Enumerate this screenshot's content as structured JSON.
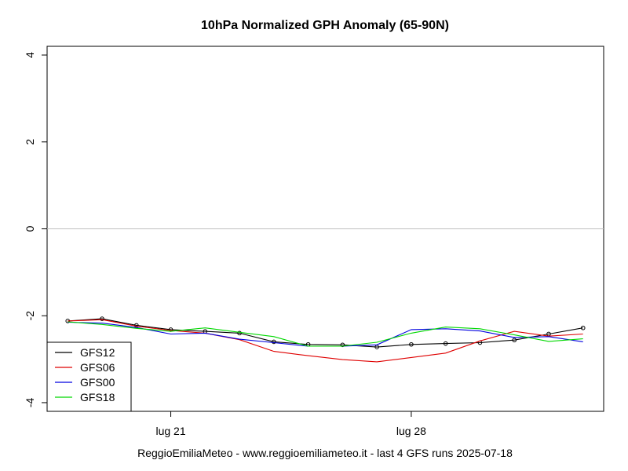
{
  "chart_data": {
    "type": "line",
    "title": "10hPa Normalized GPH Anomaly (65-90N)",
    "caption": "ReggioEmiliaMeteo - www.reggioemiliameteo.it - last 4 GFS runs 2025-07-18",
    "xlabel": "",
    "ylabel": "",
    "x": [
      1,
      2,
      3,
      4,
      5,
      6,
      7,
      8,
      9,
      10,
      11,
      12,
      13,
      14,
      15,
      16
    ],
    "x_ticks": [
      {
        "x": 4,
        "label": "lug 21"
      },
      {
        "x": 11,
        "label": "lug 28"
      }
    ],
    "xlim": [
      0.4,
      16.6
    ],
    "ylim": [
      -4.2,
      4.2
    ],
    "y_ticks": [
      "4",
      "2",
      "0",
      "-2",
      "-4"
    ],
    "y_tick_values": [
      4,
      2,
      0,
      -2,
      -4
    ],
    "reference_line": {
      "y": 0,
      "color": "#bfbfbf"
    },
    "legend_position": "bottom-left",
    "series": [
      {
        "name": "GFS12",
        "color": "#000000",
        "markers": true,
        "values": [
          -2.12,
          -2.07,
          -2.22,
          -2.32,
          -2.36,
          -2.4,
          -2.6,
          -2.66,
          -2.67,
          -2.72,
          -2.66,
          -2.64,
          -2.62,
          -2.56,
          -2.42,
          -2.28
        ]
      },
      {
        "name": "GFS06",
        "color": "#df0000",
        "markers": false,
        "values": [
          -2.12,
          -2.09,
          -2.24,
          -2.34,
          -2.4,
          -2.55,
          -2.82,
          -2.92,
          -3.01,
          -3.06,
          -2.96,
          -2.86,
          -2.58,
          -2.36,
          -2.47,
          -2.42
        ]
      },
      {
        "name": "GFS00",
        "color": "#0000e0",
        "markers": false,
        "values": [
          -2.15,
          -2.17,
          -2.27,
          -2.42,
          -2.4,
          -2.54,
          -2.62,
          -2.7,
          -2.7,
          -2.67,
          -2.32,
          -2.3,
          -2.35,
          -2.5,
          -2.48,
          -2.6
        ]
      },
      {
        "name": "GFS18",
        "color": "#00d800",
        "markers": false,
        "values": [
          -2.14,
          -2.2,
          -2.29,
          -2.36,
          -2.28,
          -2.38,
          -2.48,
          -2.7,
          -2.7,
          -2.61,
          -2.4,
          -2.26,
          -2.3,
          -2.44,
          -2.59,
          -2.53
        ]
      }
    ]
  }
}
